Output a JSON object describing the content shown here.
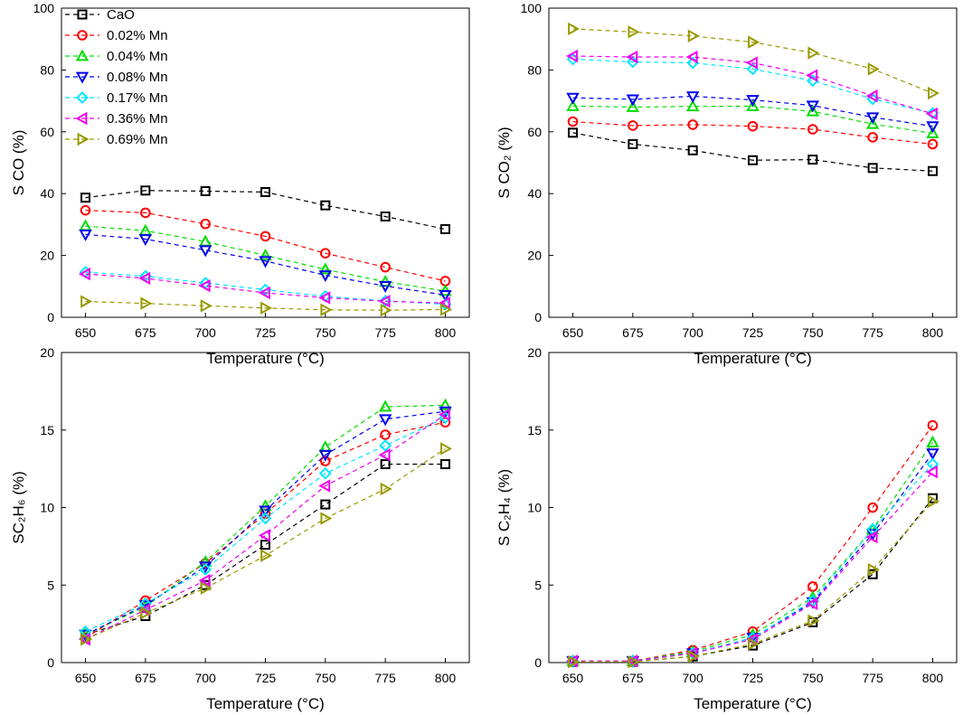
{
  "chart_data": [
    {
      "type": "line",
      "y_label": "S CO (%)",
      "x_label": "Temperature (°C)",
      "legend": "upper left",
      "x": [
        650,
        675,
        700,
        725,
        750,
        775,
        800
      ],
      "xlim": [
        640,
        810
      ],
      "xticks": [
        650,
        675,
        700,
        725,
        750,
        775,
        800
      ],
      "ylim": [
        0,
        100
      ],
      "yticks": [
        0,
        20,
        40,
        60,
        80,
        100
      ],
      "series": [
        {
          "name": "CaO",
          "color": "#000000",
          "marker": "square",
          "values": [
            38.7,
            41,
            40.8,
            40.5,
            36.2,
            32.6,
            28.5
          ]
        },
        {
          "name": "0.02% Mn",
          "color": "#ff0000",
          "marker": "circle",
          "values": [
            34.6,
            33.8,
            30.2,
            26.2,
            20.7,
            16.2,
            11.7
          ]
        },
        {
          "name": "0.04% Mn",
          "color": "#00dd00",
          "marker": "triangle-up",
          "values": [
            29.5,
            28,
            24.5,
            20,
            15.5,
            11.5,
            8.5
          ]
        },
        {
          "name": "0.08% Mn",
          "color": "#0000ee",
          "marker": "triangle-down",
          "values": [
            26.8,
            25.3,
            21.7,
            18.2,
            13.6,
            10.1,
            7.2
          ]
        },
        {
          "name": "0.17% Mn",
          "color": "#00e5ff",
          "marker": "diamond",
          "values": [
            14.6,
            13.3,
            11.1,
            8.9,
            6.8,
            5.3,
            4.2
          ]
        },
        {
          "name": "0.36% Mn",
          "color": "#ee00ee",
          "marker": "triangle-left",
          "values": [
            14.0,
            12.6,
            10.2,
            7.9,
            6.3,
            5.2,
            4.6
          ]
        },
        {
          "name": "0.69% Mn",
          "color": "#999900",
          "marker": "triangle-right",
          "values": [
            5.1,
            4.5,
            3.7,
            3.0,
            2.4,
            2.3,
            2.5
          ]
        }
      ]
    },
    {
      "type": "line",
      "y_label": "S CO₂ (%)",
      "x_label": "Temperature (°C)",
      "x": [
        650,
        675,
        700,
        725,
        750,
        775,
        800
      ],
      "xlim": [
        640,
        810
      ],
      "xticks": [
        650,
        675,
        700,
        725,
        750,
        775,
        800
      ],
      "ylim": [
        0,
        100
      ],
      "yticks": [
        0,
        20,
        40,
        60,
        80,
        100
      ],
      "series": [
        {
          "color": "#000000",
          "marker": "square",
          "values": [
            59.7,
            56.0,
            54.0,
            50.8,
            51.0,
            48.3,
            47.3
          ]
        },
        {
          "color": "#ff0000",
          "marker": "circle",
          "values": [
            63.3,
            62.0,
            62.3,
            61.8,
            60.8,
            58.2,
            56.0
          ]
        },
        {
          "color": "#00dd00",
          "marker": "triangle-up",
          "values": [
            68.3,
            68.0,
            68.2,
            68.3,
            66.6,
            62.5,
            59.5
          ]
        },
        {
          "color": "#0000ee",
          "marker": "triangle-down",
          "values": [
            71.0,
            70.5,
            71.5,
            70.3,
            68.5,
            64.7,
            61.8
          ]
        },
        {
          "color": "#00e5ff",
          "marker": "diamond",
          "values": [
            83.5,
            82.6,
            82.3,
            80.3,
            76.5,
            70.6,
            66.0
          ]
        },
        {
          "color": "#ee00ee",
          "marker": "triangle-left",
          "values": [
            84.5,
            84.2,
            84.2,
            82.3,
            78.2,
            71.6,
            65.8
          ]
        },
        {
          "color": "#999900",
          "marker": "triangle-right",
          "values": [
            93.3,
            92.3,
            91.0,
            89.0,
            85.5,
            80.3,
            72.5
          ]
        }
      ]
    },
    {
      "type": "line",
      "y_label": "SC₂H₆ (%)",
      "x_label": "Temperature (°C)",
      "x": [
        650,
        675,
        700,
        725,
        750,
        775,
        800
      ],
      "xlim": [
        640,
        810
      ],
      "xticks": [
        650,
        675,
        700,
        725,
        750,
        775,
        800
      ],
      "ylim": [
        0,
        20
      ],
      "yticks": [
        0,
        5,
        10,
        15,
        20
      ],
      "series": [
        {
          "color": "#000000",
          "marker": "square",
          "values": [
            1.8,
            3.0,
            5.0,
            7.6,
            10.2,
            12.8,
            12.8
          ]
        },
        {
          "color": "#ff0000",
          "marker": "circle",
          "values": [
            1.6,
            4.0,
            6.4,
            9.6,
            13.0,
            14.7,
            15.5
          ]
        },
        {
          "color": "#00dd00",
          "marker": "triangle-up",
          "values": [
            1.8,
            3.6,
            6.5,
            10.1,
            13.9,
            16.5,
            16.6
          ]
        },
        {
          "color": "#0000ee",
          "marker": "triangle-down",
          "values": [
            1.8,
            3.7,
            6.2,
            9.8,
            13.4,
            15.7,
            16.2
          ]
        },
        {
          "color": "#00e5ff",
          "marker": "diamond",
          "values": [
            2.0,
            3.8,
            6.0,
            9.3,
            12.2,
            14.0,
            15.8
          ]
        },
        {
          "color": "#ee00ee",
          "marker": "triangle-left",
          "values": [
            1.5,
            3.4,
            5.3,
            8.2,
            11.4,
            13.4,
            16.0
          ]
        },
        {
          "color": "#999900",
          "marker": "triangle-right",
          "values": [
            1.5,
            3.2,
            4.8,
            6.9,
            9.3,
            11.2,
            13.8
          ]
        }
      ]
    },
    {
      "type": "line",
      "y_label": "S C₂H₄ (%)",
      "x_label": "Temperature (°C)",
      "x": [
        650,
        675,
        700,
        725,
        750,
        775,
        800
      ],
      "xlim": [
        640,
        810
      ],
      "xticks": [
        650,
        675,
        700,
        725,
        750,
        775,
        800
      ],
      "ylim": [
        0,
        20
      ],
      "yticks": [
        0,
        5,
        10,
        15,
        20
      ],
      "series": [
        {
          "color": "#000000",
          "marker": "square",
          "values": [
            0.05,
            0.05,
            0.4,
            1.1,
            2.6,
            5.7,
            10.6
          ]
        },
        {
          "color": "#ff0000",
          "marker": "circle",
          "values": [
            0.1,
            0.1,
            0.8,
            2.0,
            4.9,
            10.0,
            15.3
          ]
        },
        {
          "color": "#00dd00",
          "marker": "triangle-up",
          "values": [
            0.1,
            0.1,
            0.7,
            1.8,
            4.2,
            8.6,
            14.2
          ]
        },
        {
          "color": "#0000ee",
          "marker": "triangle-down",
          "values": [
            0.1,
            0.1,
            0.6,
            1.6,
            3.9,
            8.3,
            13.5
          ]
        },
        {
          "color": "#00e5ff",
          "marker": "diamond",
          "values": [
            0.1,
            0.1,
            0.6,
            1.6,
            4.0,
            8.6,
            12.8
          ]
        },
        {
          "color": "#ee00ee",
          "marker": "triangle-left",
          "values": [
            0.1,
            0.1,
            0.6,
            1.5,
            3.8,
            8.1,
            12.3
          ]
        },
        {
          "color": "#999900",
          "marker": "triangle-right",
          "values": [
            0.05,
            0.05,
            0.4,
            1.2,
            2.7,
            6.0,
            10.4
          ]
        }
      ]
    }
  ]
}
